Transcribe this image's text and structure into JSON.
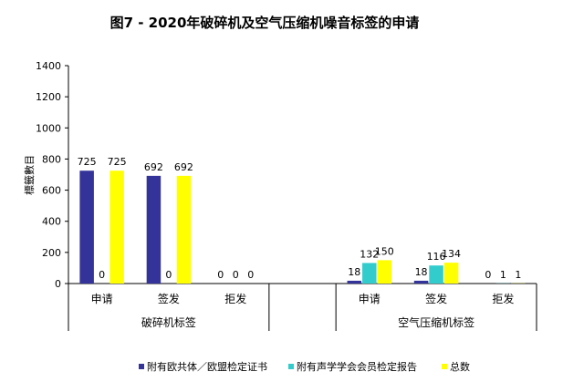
{
  "chart_data": {
    "type": "bar",
    "title": "图7 - 2020年破碎机及空气压缩机噪音标签的申请",
    "ylabel": "標籤數目",
    "xlabel": "",
    "ylim": [
      0,
      1400
    ],
    "yticks": [
      0,
      200,
      400,
      600,
      800,
      1000,
      1200,
      1400
    ],
    "grid": false,
    "legend_position": "bottom",
    "categories": [
      "申请",
      "签发",
      "拒发",
      "",
      "申请",
      "签发",
      "拒发"
    ],
    "groups": [
      {
        "label": "破碎机标签",
        "span": [
          0,
          2
        ]
      },
      {
        "label": "",
        "span": [
          3,
          3
        ]
      },
      {
        "label": "空气压缩机标签",
        "span": [
          4,
          6
        ]
      }
    ],
    "series": [
      {
        "name": "附有欧共体／欧盟检定证书",
        "color": "#333399",
        "values": [
          725,
          692,
          0,
          null,
          18,
          18,
          0
        ]
      },
      {
        "name": "附有声学学会会员检定报告",
        "color": "#33CCCC",
        "values": [
          0,
          0,
          0,
          null,
          132,
          116,
          1
        ]
      },
      {
        "name": "总数",
        "color": "#FFFF00",
        "values": [
          725,
          692,
          0,
          null,
          150,
          134,
          1
        ]
      }
    ]
  }
}
